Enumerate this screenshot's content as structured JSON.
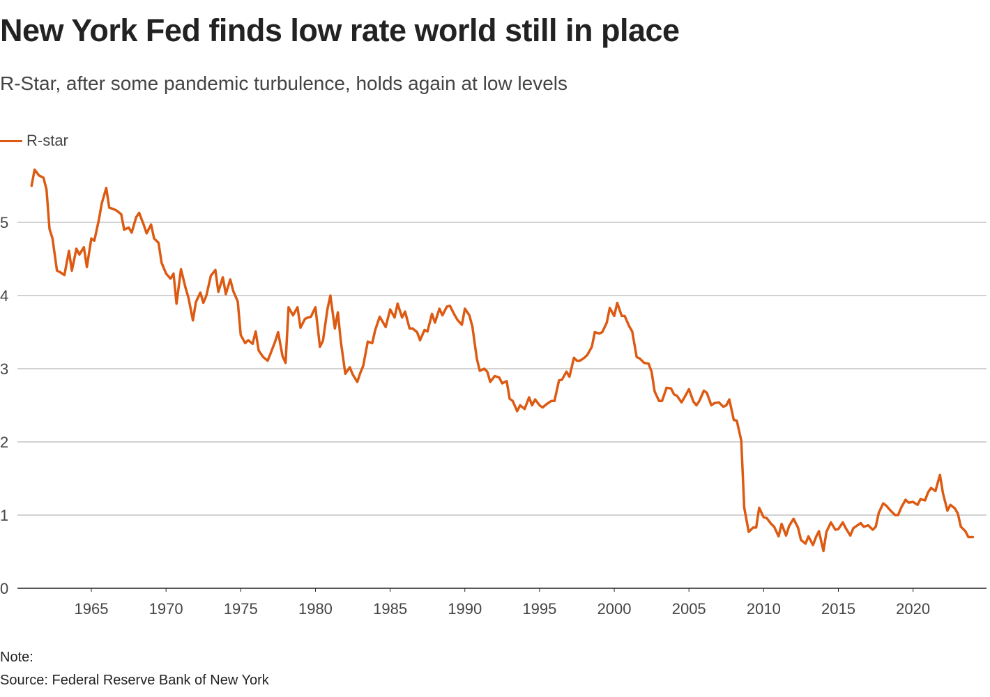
{
  "header": {
    "title": "New York Fed finds low rate world still in place",
    "subtitle": "R-Star, after some pandemic turbulence, holds again at low levels"
  },
  "footer": {
    "note": "Note:",
    "source": "Source: Federal Reserve Bank of New York"
  },
  "colors": {
    "line": "#dc5a12",
    "grid": "#c4c4c4",
    "axis": "#222222"
  },
  "chart_data": {
    "type": "line",
    "title": "New York Fed finds low rate world still in place",
    "xlabel": "",
    "ylabel": "",
    "xlim": [
      1960.1,
      2024.9
    ],
    "ylim": [
      0,
      5.9
    ],
    "y_ticks": [
      0,
      1,
      2,
      3,
      4,
      5
    ],
    "x_ticks": [
      1965,
      1970,
      1975,
      1980,
      1985,
      1990,
      1995,
      2000,
      2005,
      2010,
      2015,
      2020
    ],
    "grid": "horizontal",
    "legend": {
      "placement": "top-left",
      "entries": [
        "R-star"
      ]
    },
    "series": [
      {
        "name": "R-star",
        "points": [
          [
            1961.0,
            5.5
          ],
          [
            1961.2,
            5.72
          ],
          [
            1961.5,
            5.64
          ],
          [
            1961.8,
            5.61
          ],
          [
            1962.0,
            5.45
          ],
          [
            1962.2,
            4.91
          ],
          [
            1962.4,
            4.78
          ],
          [
            1962.7,
            4.34
          ],
          [
            1962.9,
            4.32
          ],
          [
            1963.2,
            4.28
          ],
          [
            1963.5,
            4.61
          ],
          [
            1963.7,
            4.34
          ],
          [
            1964.0,
            4.64
          ],
          [
            1964.2,
            4.56
          ],
          [
            1964.5,
            4.66
          ],
          [
            1964.7,
            4.39
          ],
          [
            1965.0,
            4.78
          ],
          [
            1965.2,
            4.75
          ],
          [
            1965.5,
            5.03
          ],
          [
            1965.7,
            5.26
          ],
          [
            1966.0,
            5.47
          ],
          [
            1966.2,
            5.2
          ],
          [
            1966.5,
            5.18
          ],
          [
            1966.7,
            5.16
          ],
          [
            1967.0,
            5.11
          ],
          [
            1967.2,
            4.9
          ],
          [
            1967.5,
            4.93
          ],
          [
            1967.7,
            4.86
          ],
          [
            1968.0,
            5.07
          ],
          [
            1968.2,
            5.13
          ],
          [
            1968.5,
            4.97
          ],
          [
            1968.7,
            4.85
          ],
          [
            1969.0,
            4.97
          ],
          [
            1969.2,
            4.78
          ],
          [
            1969.5,
            4.72
          ],
          [
            1969.7,
            4.45
          ],
          [
            1970.0,
            4.3
          ],
          [
            1970.3,
            4.23
          ],
          [
            1970.5,
            4.3
          ],
          [
            1970.7,
            3.89
          ],
          [
            1971.0,
            4.36
          ],
          [
            1971.3,
            4.11
          ],
          [
            1971.5,
            3.97
          ],
          [
            1971.8,
            3.66
          ],
          [
            1972.0,
            3.91
          ],
          [
            1972.3,
            4.04
          ],
          [
            1972.5,
            3.9
          ],
          [
            1972.7,
            4.0
          ],
          [
            1973.0,
            4.27
          ],
          [
            1973.3,
            4.35
          ],
          [
            1973.5,
            4.05
          ],
          [
            1973.8,
            4.25
          ],
          [
            1974.0,
            4.02
          ],
          [
            1974.3,
            4.22
          ],
          [
            1974.5,
            4.06
          ],
          [
            1974.8,
            3.92
          ],
          [
            1975.0,
            3.46
          ],
          [
            1975.3,
            3.35
          ],
          [
            1975.5,
            3.39
          ],
          [
            1975.8,
            3.34
          ],
          [
            1976.0,
            3.51
          ],
          [
            1976.2,
            3.25
          ],
          [
            1976.5,
            3.16
          ],
          [
            1976.8,
            3.11
          ],
          [
            1977.0,
            3.21
          ],
          [
            1977.3,
            3.37
          ],
          [
            1977.5,
            3.5
          ],
          [
            1977.8,
            3.17
          ],
          [
            1978.0,
            3.08
          ],
          [
            1978.2,
            3.84
          ],
          [
            1978.5,
            3.73
          ],
          [
            1978.8,
            3.84
          ],
          [
            1979.0,
            3.56
          ],
          [
            1979.3,
            3.68
          ],
          [
            1979.5,
            3.7
          ],
          [
            1979.7,
            3.71
          ],
          [
            1980.0,
            3.84
          ],
          [
            1980.3,
            3.3
          ],
          [
            1980.5,
            3.38
          ],
          [
            1980.8,
            3.81
          ],
          [
            1981.0,
            4.0
          ],
          [
            1981.3,
            3.55
          ],
          [
            1981.5,
            3.77
          ],
          [
            1981.7,
            3.37
          ],
          [
            1982.0,
            2.93
          ],
          [
            1982.3,
            3.02
          ],
          [
            1982.5,
            2.92
          ],
          [
            1982.8,
            2.82
          ],
          [
            1983.0,
            2.94
          ],
          [
            1983.2,
            3.04
          ],
          [
            1983.5,
            3.37
          ],
          [
            1983.8,
            3.35
          ],
          [
            1984.0,
            3.53
          ],
          [
            1984.3,
            3.71
          ],
          [
            1984.5,
            3.64
          ],
          [
            1984.7,
            3.57
          ],
          [
            1985.0,
            3.81
          ],
          [
            1985.3,
            3.7
          ],
          [
            1985.5,
            3.89
          ],
          [
            1985.8,
            3.7
          ],
          [
            1986.0,
            3.78
          ],
          [
            1986.3,
            3.55
          ],
          [
            1986.5,
            3.55
          ],
          [
            1986.8,
            3.5
          ],
          [
            1987.0,
            3.39
          ],
          [
            1987.3,
            3.53
          ],
          [
            1987.5,
            3.51
          ],
          [
            1987.8,
            3.75
          ],
          [
            1988.0,
            3.63
          ],
          [
            1988.3,
            3.82
          ],
          [
            1988.5,
            3.73
          ],
          [
            1988.8,
            3.85
          ],
          [
            1989.0,
            3.86
          ],
          [
            1989.3,
            3.74
          ],
          [
            1989.5,
            3.67
          ],
          [
            1989.8,
            3.6
          ],
          [
            1990.0,
            3.82
          ],
          [
            1990.3,
            3.73
          ],
          [
            1990.5,
            3.58
          ],
          [
            1990.8,
            3.14
          ],
          [
            1991.0,
            2.97
          ],
          [
            1991.3,
            3.0
          ],
          [
            1991.5,
            2.96
          ],
          [
            1991.7,
            2.82
          ],
          [
            1992.0,
            2.9
          ],
          [
            1992.3,
            2.88
          ],
          [
            1992.5,
            2.8
          ],
          [
            1992.8,
            2.83
          ],
          [
            1993.0,
            2.59
          ],
          [
            1993.2,
            2.56
          ],
          [
            1993.5,
            2.42
          ],
          [
            1993.7,
            2.5
          ],
          [
            1994.0,
            2.45
          ],
          [
            1994.3,
            2.61
          ],
          [
            1994.5,
            2.5
          ],
          [
            1994.7,
            2.58
          ],
          [
            1995.0,
            2.5
          ],
          [
            1995.2,
            2.47
          ],
          [
            1995.5,
            2.52
          ],
          [
            1995.8,
            2.56
          ],
          [
            1996.0,
            2.56
          ],
          [
            1996.3,
            2.84
          ],
          [
            1996.5,
            2.85
          ],
          [
            1996.8,
            2.96
          ],
          [
            1997.0,
            2.89
          ],
          [
            1997.3,
            3.15
          ],
          [
            1997.5,
            3.11
          ],
          [
            1997.7,
            3.11
          ],
          [
            1998.0,
            3.15
          ],
          [
            1998.2,
            3.19
          ],
          [
            1998.5,
            3.3
          ],
          [
            1998.7,
            3.5
          ],
          [
            1999.0,
            3.48
          ],
          [
            1999.2,
            3.5
          ],
          [
            1999.5,
            3.63
          ],
          [
            1999.7,
            3.83
          ],
          [
            2000.0,
            3.72
          ],
          [
            2000.2,
            3.9
          ],
          [
            2000.5,
            3.72
          ],
          [
            2000.7,
            3.72
          ],
          [
            2001.0,
            3.58
          ],
          [
            2001.2,
            3.51
          ],
          [
            2001.5,
            3.16
          ],
          [
            2001.7,
            3.14
          ],
          [
            2002.0,
            3.08
          ],
          [
            2002.3,
            3.07
          ],
          [
            2002.5,
            2.96
          ],
          [
            2002.7,
            2.69
          ],
          [
            2003.0,
            2.56
          ],
          [
            2003.2,
            2.56
          ],
          [
            2003.5,
            2.74
          ],
          [
            2003.8,
            2.73
          ],
          [
            2004.0,
            2.65
          ],
          [
            2004.2,
            2.63
          ],
          [
            2004.5,
            2.54
          ],
          [
            2004.7,
            2.61
          ],
          [
            2005.0,
            2.72
          ],
          [
            2005.3,
            2.55
          ],
          [
            2005.5,
            2.5
          ],
          [
            2005.7,
            2.56
          ],
          [
            2006.0,
            2.7
          ],
          [
            2006.2,
            2.67
          ],
          [
            2006.5,
            2.5
          ],
          [
            2006.7,
            2.53
          ],
          [
            2007.0,
            2.54
          ],
          [
            2007.3,
            2.48
          ],
          [
            2007.5,
            2.5
          ],
          [
            2007.7,
            2.58
          ],
          [
            2008.0,
            2.3
          ],
          [
            2008.2,
            2.29
          ],
          [
            2008.5,
            2.02
          ],
          [
            2008.7,
            1.1
          ],
          [
            2009.0,
            0.77
          ],
          [
            2009.3,
            0.83
          ],
          [
            2009.5,
            0.83
          ],
          [
            2009.7,
            1.1
          ],
          [
            2010.0,
            0.97
          ],
          [
            2010.2,
            0.96
          ],
          [
            2010.5,
            0.88
          ],
          [
            2010.7,
            0.84
          ],
          [
            2011.0,
            0.71
          ],
          [
            2011.2,
            0.88
          ],
          [
            2011.5,
            0.72
          ],
          [
            2011.7,
            0.85
          ],
          [
            2012.0,
            0.95
          ],
          [
            2012.3,
            0.83
          ],
          [
            2012.5,
            0.66
          ],
          [
            2012.8,
            0.61
          ],
          [
            2013.0,
            0.71
          ],
          [
            2013.3,
            0.59
          ],
          [
            2013.5,
            0.7
          ],
          [
            2013.7,
            0.78
          ],
          [
            2014.0,
            0.51
          ],
          [
            2014.2,
            0.77
          ],
          [
            2014.5,
            0.9
          ],
          [
            2014.8,
            0.8
          ],
          [
            2015.0,
            0.81
          ],
          [
            2015.3,
            0.9
          ],
          [
            2015.5,
            0.82
          ],
          [
            2015.8,
            0.72
          ],
          [
            2016.0,
            0.82
          ],
          [
            2016.2,
            0.85
          ],
          [
            2016.5,
            0.89
          ],
          [
            2016.7,
            0.84
          ],
          [
            2017.0,
            0.86
          ],
          [
            2017.3,
            0.8
          ],
          [
            2017.5,
            0.84
          ],
          [
            2017.7,
            1.03
          ],
          [
            2018.0,
            1.16
          ],
          [
            2018.2,
            1.13
          ],
          [
            2018.5,
            1.06
          ],
          [
            2018.8,
            1.0
          ],
          [
            2019.0,
            1.0
          ],
          [
            2019.2,
            1.1
          ],
          [
            2019.5,
            1.21
          ],
          [
            2019.7,
            1.17
          ],
          [
            2020.0,
            1.18
          ],
          [
            2020.3,
            1.14
          ],
          [
            2020.5,
            1.22
          ],
          [
            2020.8,
            1.2
          ],
          [
            2021.0,
            1.31
          ],
          [
            2021.2,
            1.37
          ],
          [
            2021.5,
            1.33
          ],
          [
            2021.8,
            1.55
          ],
          [
            2022.0,
            1.3
          ],
          [
            2022.3,
            1.06
          ],
          [
            2022.5,
            1.14
          ],
          [
            2022.8,
            1.09
          ],
          [
            2023.0,
            1.02
          ],
          [
            2023.2,
            0.84
          ],
          [
            2023.5,
            0.78
          ],
          [
            2023.7,
            0.7
          ],
          [
            2024.0,
            0.7
          ]
        ]
      }
    ]
  }
}
